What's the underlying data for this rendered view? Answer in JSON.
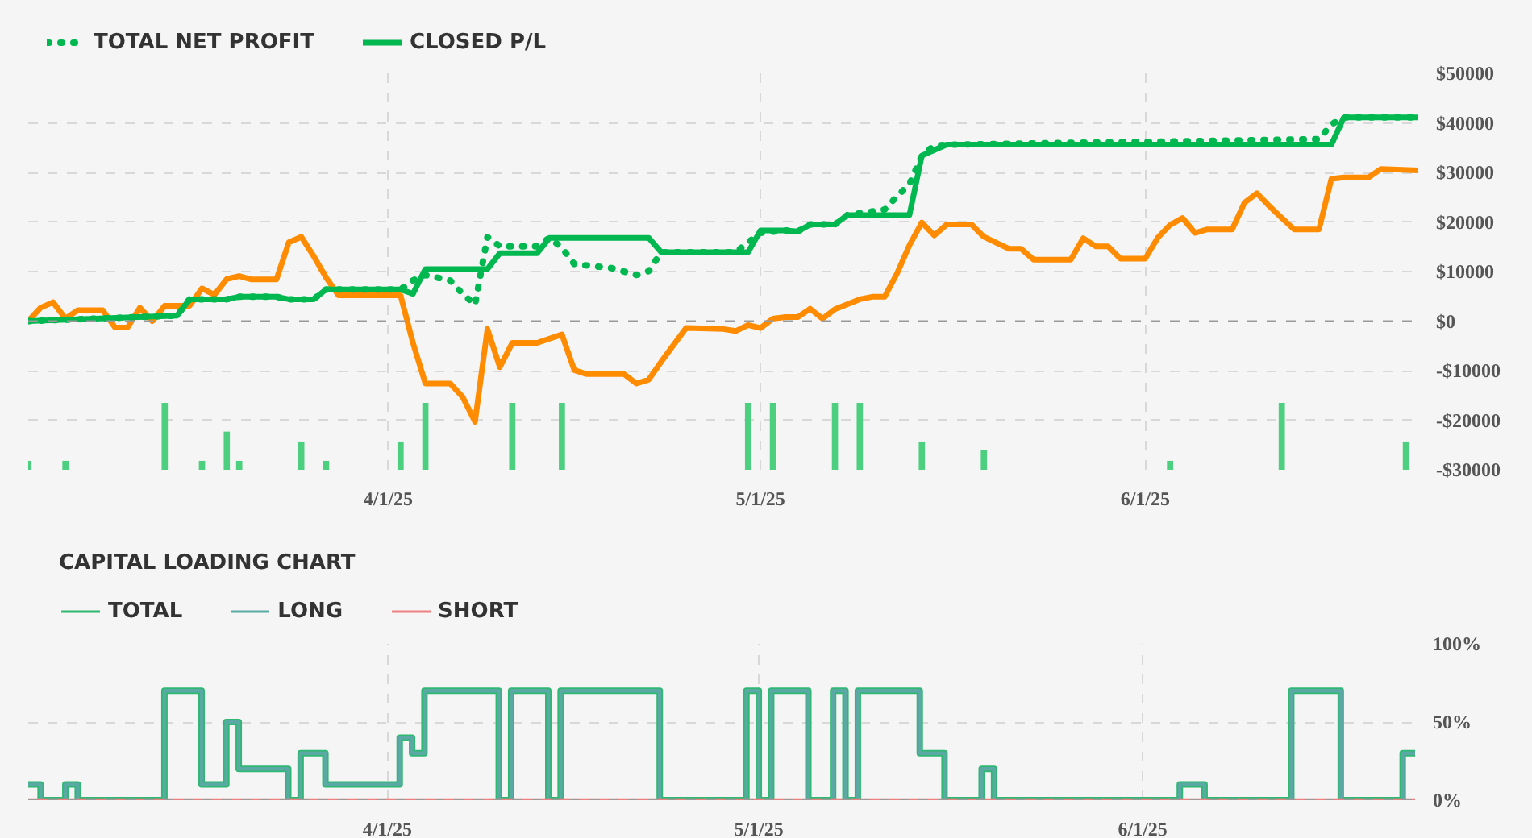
{
  "chart_data": [
    {
      "type": "line",
      "xlim": [
        "2025-03-03",
        "2025-06-23"
      ],
      "ylim": [
        -30000,
        50000
      ],
      "xticks": [
        {
          "value": "2025-04-01",
          "label": "4/1/25"
        },
        {
          "value": "2025-05-01",
          "label": "5/1/25"
        },
        {
          "value": "2025-06-01",
          "label": "6/1/25"
        }
      ],
      "yticks": [
        {
          "value": -30000,
          "label": "-$30000"
        },
        {
          "value": -20000,
          "label": "-$20000"
        },
        {
          "value": -10000,
          "label": "-$10000"
        },
        {
          "value": 0,
          "label": "$0"
        },
        {
          "value": 10000,
          "label": "$10000"
        },
        {
          "value": 20000,
          "label": "$20000"
        },
        {
          "value": 30000,
          "label": "$30000"
        },
        {
          "value": 40000,
          "label": "$40000"
        },
        {
          "value": 50000,
          "label": "$50000"
        }
      ],
      "grid": true,
      "legend": "top left",
      "ref_lines": [
        {
          "axis": "y",
          "value": 0,
          "label": null,
          "color": "#999999",
          "line_style": "dashed"
        }
      ],
      "series": [
        {
          "type": "bar",
          "color": "#4ccf7f",
          "x": [
            "2025-03-03",
            "2025-03-06",
            "2025-03-14",
            "2025-03-17",
            "2025-03-19",
            "2025-03-20",
            "2025-03-25",
            "2025-03-27",
            "2025-04-02",
            "2025-04-04",
            "2025-04-11",
            "2025-04-15",
            "2025-04-30",
            "2025-05-02",
            "2025-05-07",
            "2025-05-09",
            "2025-05-14",
            "2025-05-19",
            "2025-06-03",
            "2025-06-12",
            "2025-06-22"
          ],
          "values": [
            1800,
            1800,
            13500,
            1800,
            7700,
            1800,
            5700,
            1800,
            5700,
            13500,
            13500,
            13500,
            13500,
            13500,
            13500,
            13500,
            5700,
            4000,
            1800,
            13500,
            5700
          ],
          "base": [
            -30000,
            -30000,
            -30000,
            -30000,
            -30000,
            -30000,
            -30000,
            -30000,
            -30000,
            -30000,
            -30000,
            -30000,
            -30000,
            -30000,
            -30000,
            -30000,
            -30000,
            -30000,
            -30000,
            -30000,
            -30000
          ]
        },
        {
          "type": "line",
          "color": "#ff8c00",
          "x": [
            "2025-03-03",
            "2025-03-04",
            "2025-03-05",
            "2025-03-06",
            "2025-03-07",
            "2025-03-09",
            "2025-03-10",
            "2025-03-11",
            "2025-03-12",
            "2025-03-13",
            "2025-03-14",
            "2025-03-16",
            "2025-03-17",
            "2025-03-18",
            "2025-03-19",
            "2025-03-20",
            "2025-03-21",
            "2025-03-23",
            "2025-03-24",
            "2025-03-25",
            "2025-03-26",
            "2025-03-27",
            "2025-03-28",
            "2025-04-02",
            "2025-04-03",
            "2025-04-04",
            "2025-04-06",
            "2025-04-07",
            "2025-04-08",
            "2025-04-09",
            "2025-04-10",
            "2025-04-11",
            "2025-04-13",
            "2025-04-15",
            "2025-04-16",
            "2025-04-17",
            "2025-04-20",
            "2025-04-21",
            "2025-04-22",
            "2025-04-23",
            "2025-04-25",
            "2025-04-28",
            "2025-04-29",
            "2025-04-30",
            "2025-05-01",
            "2025-05-02",
            "2025-05-03",
            "2025-05-04",
            "2025-05-05",
            "2025-05-06",
            "2025-05-07",
            "2025-05-09",
            "2025-05-10",
            "2025-05-11",
            "2025-05-12",
            "2025-05-13",
            "2025-05-14",
            "2025-05-15",
            "2025-05-16",
            "2025-05-18",
            "2025-05-19",
            "2025-05-21",
            "2025-05-22",
            "2025-05-23",
            "2025-05-26",
            "2025-05-27",
            "2025-05-28",
            "2025-05-29",
            "2025-05-30",
            "2025-06-01",
            "2025-06-02",
            "2025-06-03",
            "2025-06-04",
            "2025-06-05",
            "2025-06-06",
            "2025-06-08",
            "2025-06-09",
            "2025-06-10",
            "2025-06-11",
            "2025-06-12",
            "2025-06-13",
            "2025-06-15",
            "2025-06-16",
            "2025-06-17",
            "2025-06-19",
            "2025-06-20",
            "2025-06-23"
          ],
          "values": [
            0,
            2700,
            3800,
            500,
            2200,
            2200,
            -1300,
            -1300,
            2700,
            0,
            3100,
            3100,
            6600,
            5300,
            8500,
            9100,
            8400,
            8400,
            15900,
            17000,
            13100,
            8800,
            5200,
            5200,
            -4400,
            -12600,
            -12600,
            -15300,
            -20300,
            -1600,
            -9300,
            -4400,
            -4400,
            -2700,
            -9900,
            -10700,
            -10700,
            -12600,
            -11800,
            -8200,
            -1400,
            -1600,
            -2000,
            -800,
            -1400,
            500,
            800,
            800,
            2500,
            500,
            2400,
            4400,
            4900,
            4900,
            9600,
            15300,
            19900,
            17300,
            19500,
            19500,
            17000,
            14600,
            14600,
            12400,
            12400,
            16700,
            15100,
            15100,
            12600,
            12600,
            16800,
            19400,
            20800,
            17800,
            18500,
            18500,
            23900,
            25800,
            23200,
            20800,
            18500,
            18500,
            28700,
            29000,
            29000,
            30700,
            30400
          ]
        },
        {
          "type": "line",
          "name": "TOTAL NET PROFIT",
          "color": "#00b84f",
          "line_style": "dotted",
          "x": [
            "2025-03-03",
            "2025-03-15",
            "2025-03-16",
            "2025-03-19",
            "2025-03-20",
            "2025-03-23",
            "2025-03-24",
            "2025-03-26",
            "2025-03-27",
            "2025-04-02",
            "2025-04-03",
            "2025-04-04",
            "2025-04-06",
            "2025-04-07",
            "2025-04-08",
            "2025-04-09",
            "2025-04-10",
            "2025-04-13",
            "2025-04-14",
            "2025-04-15",
            "2025-04-16",
            "2025-04-19",
            "2025-04-21",
            "2025-04-22",
            "2025-04-23",
            "2025-04-29",
            "2025-04-30",
            "2025-05-01",
            "2025-05-03",
            "2025-05-04",
            "2025-05-05",
            "2025-05-07",
            "2025-05-08",
            "2025-05-11",
            "2025-05-12",
            "2025-05-13",
            "2025-05-14",
            "2025-05-15",
            "2025-05-16",
            "2025-06-15",
            "2025-06-16",
            "2025-06-17",
            "2025-06-23"
          ],
          "values": [
            0,
            1100,
            4400,
            4400,
            4900,
            4900,
            4400,
            4400,
            6400,
            6400,
            8200,
            9300,
            8200,
            5500,
            3300,
            17000,
            15100,
            15100,
            16800,
            14800,
            11500,
            10700,
            9300,
            10100,
            13900,
            13900,
            15900,
            17800,
            18300,
            18100,
            19500,
            19500,
            21400,
            22500,
            25200,
            27600,
            33400,
            35400,
            35600,
            36700,
            39700,
            41100,
            41100
          ]
        },
        {
          "type": "line",
          "name": "CLOSED P/L",
          "color": "#00b84f",
          "line_style": "solid",
          "x": [
            "2025-03-03",
            "2025-03-15",
            "2025-03-16",
            "2025-03-19",
            "2025-03-20",
            "2025-03-23",
            "2025-03-24",
            "2025-03-26",
            "2025-03-27",
            "2025-04-02",
            "2025-04-03",
            "2025-04-04",
            "2025-04-09",
            "2025-04-10",
            "2025-04-13",
            "2025-04-14",
            "2025-04-22",
            "2025-04-23",
            "2025-04-30",
            "2025-05-01",
            "2025-05-03",
            "2025-05-04",
            "2025-05-05",
            "2025-05-07",
            "2025-05-08",
            "2025-05-13",
            "2025-05-14",
            "2025-05-15",
            "2025-05-16",
            "2025-06-16",
            "2025-06-17",
            "2025-06-23"
          ],
          "values": [
            0,
            1100,
            4400,
            4400,
            4900,
            4900,
            4400,
            4400,
            6400,
            6400,
            5500,
            10500,
            10500,
            13700,
            13700,
            16800,
            16800,
            13900,
            13900,
            18300,
            18300,
            18100,
            19500,
            19500,
            21400,
            21400,
            33400,
            34500,
            35600,
            35600,
            41100,
            41100
          ]
        }
      ]
    },
    {
      "type": "step",
      "title": "CAPITAL LOADING CHART",
      "xlim": [
        "2025-03-03",
        "2025-06-23"
      ],
      "ylim": [
        0,
        100
      ],
      "xticks": [
        {
          "value": "2025-04-01",
          "label": "4/1/25"
        },
        {
          "value": "2025-05-01",
          "label": "5/1/25"
        },
        {
          "value": "2025-06-01",
          "label": "6/1/25"
        }
      ],
      "yticks": [
        {
          "value": 0,
          "label": "0%"
        },
        {
          "value": 50,
          "label": "50%"
        },
        {
          "value": 100,
          "label": "100%"
        }
      ],
      "grid": true,
      "legend": "top left",
      "ref_lines": [
        {
          "axis": "y",
          "value": 0,
          "label": null,
          "color": "#999999",
          "line_style": "dashed"
        }
      ],
      "series": [
        {
          "name": "TOTAL",
          "color": "#2eb872",
          "x": [
            "2025-03-03",
            "2025-03-04",
            "2025-03-06",
            "2025-03-07",
            "2025-03-14",
            "2025-03-17",
            "2025-03-19",
            "2025-03-20",
            "2025-03-24",
            "2025-03-25",
            "2025-03-27",
            "2025-04-02",
            "2025-04-03",
            "2025-04-04",
            "2025-04-10",
            "2025-04-11",
            "2025-04-14",
            "2025-04-15",
            "2025-04-23",
            "2025-04-30",
            "2025-05-01",
            "2025-05-02",
            "2025-05-05",
            "2025-05-07",
            "2025-05-08",
            "2025-05-09",
            "2025-05-14",
            "2025-05-16",
            "2025-05-19",
            "2025-05-20",
            "2025-06-04",
            "2025-06-06",
            "2025-06-13",
            "2025-06-17",
            "2025-06-22",
            "2025-06-23"
          ],
          "values": [
            10,
            0,
            10,
            0,
            70,
            10,
            50,
            20,
            0,
            30,
            10,
            40,
            30,
            70,
            0,
            70,
            0,
            70,
            0,
            70,
            0,
            70,
            0,
            70,
            0,
            70,
            30,
            0,
            20,
            0,
            10,
            0,
            70,
            0,
            30,
            30
          ]
        },
        {
          "name": "LONG",
          "color": "#5aa9a4",
          "x": [
            "2025-03-03",
            "2025-03-04",
            "2025-03-06",
            "2025-03-07",
            "2025-03-14",
            "2025-03-17",
            "2025-03-19",
            "2025-03-20",
            "2025-03-24",
            "2025-03-25",
            "2025-03-27",
            "2025-04-02",
            "2025-04-03",
            "2025-04-04",
            "2025-04-10",
            "2025-04-11",
            "2025-04-14",
            "2025-04-15",
            "2025-04-23",
            "2025-04-30",
            "2025-05-01",
            "2025-05-02",
            "2025-05-05",
            "2025-05-07",
            "2025-05-08",
            "2025-05-09",
            "2025-05-14",
            "2025-05-16",
            "2025-05-19",
            "2025-05-20",
            "2025-06-04",
            "2025-06-06",
            "2025-06-13",
            "2025-06-17",
            "2025-06-22",
            "2025-06-23"
          ],
          "values": [
            10,
            0,
            10,
            0,
            70,
            10,
            50,
            20,
            0,
            30,
            10,
            40,
            30,
            70,
            0,
            70,
            0,
            70,
            0,
            70,
            0,
            70,
            0,
            70,
            0,
            70,
            30,
            0,
            20,
            0,
            10,
            0,
            70,
            0,
            30,
            30
          ]
        },
        {
          "name": "SHORT",
          "color": "#f08080",
          "x": [
            "2025-03-03",
            "2025-06-23"
          ],
          "values": [
            0,
            0
          ]
        }
      ]
    }
  ]
}
